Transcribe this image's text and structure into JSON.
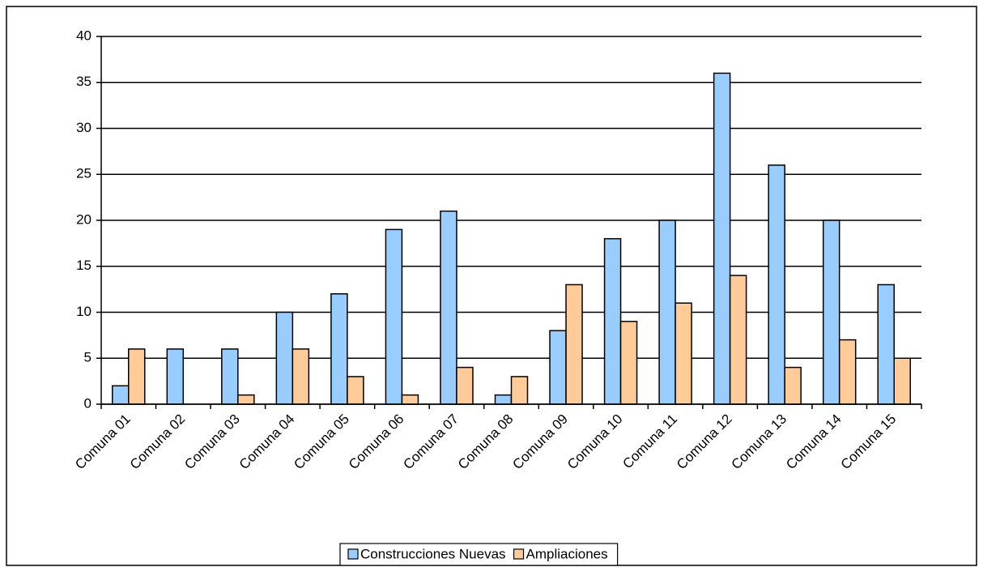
{
  "chart_data": {
    "type": "bar",
    "categories": [
      "Comuna 01",
      "Comuna 02",
      "Comuna 03",
      "Comuna 04",
      "Comuna 05",
      "Comuna 06",
      "Comuna 07",
      "Comuna 08",
      "Comuna 09",
      "Comuna 10",
      "Comuna 11",
      "Comuna 12",
      "Comuna 13",
      "Comuna 14",
      "Comuna 15"
    ],
    "series": [
      {
        "name": "Construcciones Nuevas",
        "color": "#99ccff",
        "values": [
          2,
          6,
          6,
          10,
          12,
          19,
          21,
          1,
          8,
          18,
          20,
          36,
          26,
          20,
          13
        ]
      },
      {
        "name": "Ampliaciones",
        "color": "#ffcc99",
        "values": [
          6,
          0,
          1,
          6,
          3,
          1,
          4,
          3,
          13,
          9,
          11,
          14,
          4,
          7,
          5
        ]
      }
    ],
    "ylim": [
      0,
      40
    ],
    "yticks": [
      0,
      5,
      10,
      15,
      20,
      25,
      30,
      35,
      40
    ],
    "grid": true,
    "legend": "bottom"
  }
}
